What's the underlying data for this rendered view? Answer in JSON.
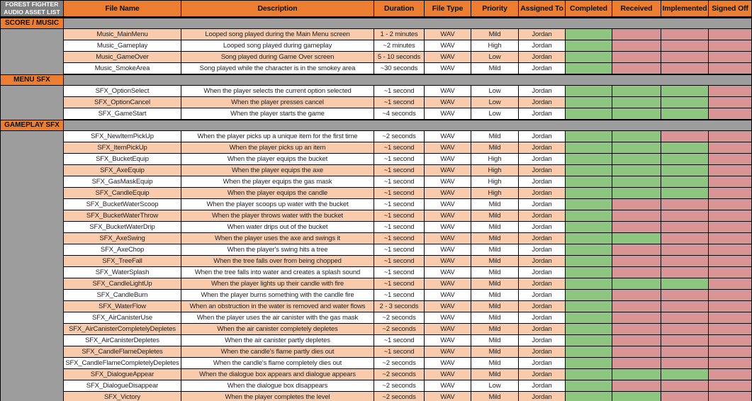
{
  "title": {
    "line1": "FOREST FIGHTER",
    "line2": "AUDIO ASSET LIST"
  },
  "columns": [
    "File Name",
    "Description",
    "Duration",
    "File Type",
    "Priority",
    "Assigned To",
    "Completed",
    "Received",
    "Implemented",
    "Signed Off"
  ],
  "colors": {
    "header_orange": "#ED7D31",
    "title_gray": "#7F7F7F",
    "band_gray": "#9D9D9D",
    "row_shade": "#F8CBAD",
    "status_done": "#8EC57F",
    "status_pending": "#D99595",
    "border": "#000000"
  },
  "status_columns": [
    "completed",
    "received",
    "implemented",
    "signed-off"
  ],
  "sections": [
    {
      "label": "SCORE / MUSIC",
      "first_row_shaded": true,
      "rows": [
        {
          "file": "Music_MainMenu",
          "desc": "Looped song played during the Main Menu screen",
          "duration": "1 - 2 minutes",
          "type": "WAV",
          "priority": "Mild",
          "assigned": "Jordan",
          "status": [
            "done",
            "pending",
            "pending",
            "pending"
          ]
        },
        {
          "file": "Music_Gameplay",
          "desc": "Looped song played during gameplay",
          "duration": "~2 minutes",
          "type": "WAV",
          "priority": "High",
          "assigned": "Jordan",
          "status": [
            "done",
            "pending",
            "pending",
            "pending"
          ]
        },
        {
          "file": "Music_GameOver",
          "desc": "Song played during Game Over screen",
          "duration": "5 - 10 seconds",
          "type": "WAV",
          "priority": "Low",
          "assigned": "Jordan",
          "status": [
            "done",
            "pending",
            "pending",
            "pending"
          ]
        },
        {
          "file": "Music_SmokeArea",
          "desc": "Song played while the character is in the smokey area",
          "duration": "~30 seconds",
          "type": "WAV",
          "priority": "Mild",
          "assigned": "Jordan",
          "status": [
            "done",
            "pending",
            "pending",
            "pending"
          ]
        }
      ]
    },
    {
      "label": "MENU SFX",
      "first_row_shaded": false,
      "rows": [
        {
          "file": "SFX_OptionSelect",
          "desc": "When the player selects the current option selected",
          "duration": "~1 second",
          "type": "WAV",
          "priority": "Low",
          "assigned": "Jordan",
          "status": [
            "done",
            "done",
            "done",
            "pending"
          ]
        },
        {
          "file": "SFX_OptionCancel",
          "desc": "When the player presses cancel",
          "duration": "~1 second",
          "type": "WAV",
          "priority": "Low",
          "assigned": "Jordan",
          "status": [
            "done",
            "done",
            "done",
            "pending"
          ]
        },
        {
          "file": "SFX_GameStart",
          "desc": "When the player starts the game",
          "duration": "~4 seconds",
          "type": "WAV",
          "priority": "Low",
          "assigned": "Jordan",
          "status": [
            "done",
            "done",
            "done",
            "pending"
          ]
        }
      ]
    },
    {
      "label": "GAMEPLAY SFX",
      "first_row_shaded": false,
      "rows": [
        {
          "file": "SFX_NewItemPickUp",
          "desc": "When the player picks up a unique item for the first time",
          "duration": "~2 seconds",
          "type": "WAV",
          "priority": "Mild",
          "assigned": "Jordan",
          "status": [
            "done",
            "done",
            "pending",
            "pending"
          ]
        },
        {
          "file": "SFX_ItemPickUp",
          "desc": "When the player picks up an item",
          "duration": "~1 second",
          "type": "WAV",
          "priority": "Mild",
          "assigned": "Jordan",
          "status": [
            "done",
            "done",
            "done",
            "pending"
          ]
        },
        {
          "file": "SFX_BucketEquip",
          "desc": "When the player equips the bucket",
          "duration": "~1 second",
          "type": "WAV",
          "priority": "High",
          "assigned": "Jordan",
          "status": [
            "done",
            "done",
            "done",
            "pending"
          ]
        },
        {
          "file": "SFX_AxeEquip",
          "desc": "When the player equips the axe",
          "duration": "~1 second",
          "type": "WAV",
          "priority": "High",
          "assigned": "Jordan",
          "status": [
            "done",
            "done",
            "done",
            "pending"
          ]
        },
        {
          "file": "SFX_GasMaskEquip",
          "desc": "When the player equips the gas mask",
          "duration": "~1 second",
          "type": "WAV",
          "priority": "High",
          "assigned": "Jordan",
          "status": [
            "done",
            "done",
            "done",
            "pending"
          ]
        },
        {
          "file": "SFX_CandleEquip",
          "desc": "When the player equips the candle",
          "duration": "~1 second",
          "type": "WAV",
          "priority": "High",
          "assigned": "Jordan",
          "status": [
            "done",
            "done",
            "done",
            "pending"
          ]
        },
        {
          "file": "SFX_BucketWaterScoop",
          "desc": "When the player scoops up water with the bucket",
          "duration": "~1 second",
          "type": "WAV",
          "priority": "Mild",
          "assigned": "Jordan",
          "status": [
            "done",
            "pending",
            "pending",
            "pending"
          ]
        },
        {
          "file": "SFX_BucketWaterThrow",
          "desc": "When the player throws water with the bucket",
          "duration": "~1 second",
          "type": "WAV",
          "priority": "Mild",
          "assigned": "Jordan",
          "status": [
            "done",
            "pending",
            "pending",
            "pending"
          ]
        },
        {
          "file": "SFX_BucketWaterDrip",
          "desc": "When water drips out of the bucket",
          "duration": "~1 second",
          "type": "WAV",
          "priority": "Mild",
          "assigned": "Jordan",
          "status": [
            "done",
            "pending",
            "pending",
            "pending"
          ]
        },
        {
          "file": "SFX_AxeSwing",
          "desc": "When the player uses the axe and swings it",
          "duration": "~1 second",
          "type": "WAV",
          "priority": "Mild",
          "assigned": "Jordan",
          "status": [
            "done",
            "done",
            "pending",
            "pending"
          ]
        },
        {
          "file": "SFX_AxeChop",
          "desc": "When the player's swing hits a tree",
          "duration": "~1 second",
          "type": "WAV",
          "priority": "Mild",
          "assigned": "Jordan",
          "status": [
            "done",
            "pending",
            "pending",
            "pending"
          ]
        },
        {
          "file": "SFX_TreeFall",
          "desc": "When the tree falls over from being chopped",
          "duration": "~1 second",
          "type": "WAV",
          "priority": "Mild",
          "assigned": "Jordan",
          "status": [
            "done",
            "pending",
            "pending",
            "pending"
          ]
        },
        {
          "file": "SFX_WaterSplash",
          "desc": "When the tree falls into water and creates a splash sound",
          "duration": "~1 second",
          "type": "WAV",
          "priority": "Mild",
          "assigned": "Jordan",
          "status": [
            "done",
            "pending",
            "pending",
            "pending"
          ]
        },
        {
          "file": "SFX_CandleLightUp",
          "desc": "When the player lights up their candle with fire",
          "duration": "~1 second",
          "type": "WAV",
          "priority": "Mild",
          "assigned": "Jordan",
          "status": [
            "done",
            "done",
            "done",
            "pending"
          ]
        },
        {
          "file": "SFX_CandleBurn",
          "desc": "When the player burns something with the candle fire",
          "duration": "~1 second",
          "type": "WAV",
          "priority": "Mild",
          "assigned": "Jordan",
          "status": [
            "done",
            "pending",
            "pending",
            "pending"
          ]
        },
        {
          "file": "SFX_WaterFlow",
          "desc": "When an obstruction in the water is removed and water flows",
          "duration": "2 - 3 seconds",
          "type": "WAV",
          "priority": "Mild",
          "assigned": "Jordan",
          "status": [
            "done",
            "pending",
            "pending",
            "pending"
          ]
        },
        {
          "file": "SFX_AirCanisterUse",
          "desc": "When the player uses the air canister with the gas mask",
          "duration": "~2 seconds",
          "type": "WAV",
          "priority": "Mild",
          "assigned": "Jordan",
          "status": [
            "done",
            "pending",
            "pending",
            "pending"
          ]
        },
        {
          "file": "SFX_AirCanisterCompletelyDepletes",
          "desc": "When the air canister completely depletes",
          "duration": "~2 seconds",
          "type": "WAV",
          "priority": "Mild",
          "assigned": "Jordan",
          "status": [
            "done",
            "pending",
            "pending",
            "pending"
          ]
        },
        {
          "file": "SFX_AirCanisterDepletes",
          "desc": "When the air canister partly depletes",
          "duration": "~1 second",
          "type": "WAV",
          "priority": "Mild",
          "assigned": "Jordan",
          "status": [
            "done",
            "pending",
            "pending",
            "pending"
          ]
        },
        {
          "file": "SFX_CandleFlameDepletes",
          "desc": "When the candle's flame partly dies out",
          "duration": "~1 second",
          "type": "WAV",
          "priority": "Mild",
          "assigned": "Jordan",
          "status": [
            "done",
            "pending",
            "pending",
            "pending"
          ]
        },
        {
          "file": "SFX_CandleFlameCompletelyDepletes",
          "desc": "When the candle's flame completely dies out",
          "duration": "~2 seconds",
          "type": "WAV",
          "priority": "Mild",
          "assigned": "Jordan",
          "status": [
            "done",
            "pending",
            "pending",
            "pending"
          ]
        },
        {
          "file": "SFX_DialogueAppear",
          "desc": "When the dialogue box appears and dialogue appears",
          "duration": "~2 seconds",
          "type": "WAV",
          "priority": "Mild",
          "assigned": "Jordan",
          "status": [
            "done",
            "done",
            "done",
            "pending"
          ]
        },
        {
          "file": "SFX_DialogueDisappear",
          "desc": "When the dialogue box disappears",
          "duration": "~2 seconds",
          "type": "WAV",
          "priority": "Low",
          "assigned": "Jordan",
          "status": [
            "done",
            "pending",
            "pending",
            "pending"
          ]
        },
        {
          "file": "SFX_Victory",
          "desc": "When the player completes the level",
          "duration": "~2 seconds",
          "type": "WAV",
          "priority": "Mild",
          "assigned": "Jordan",
          "status": [
            "done",
            "done",
            "pending",
            "pending"
          ]
        }
      ]
    }
  ]
}
